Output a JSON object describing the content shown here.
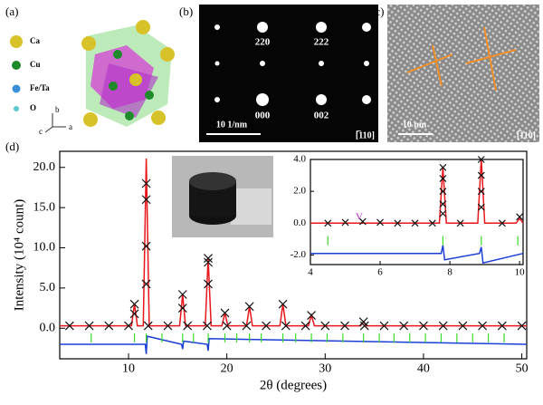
{
  "panel_labels": [
    "(a)",
    "(b)",
    "(c)",
    "(d)"
  ],
  "structure": {
    "legend": [
      "Ca",
      "Cu",
      "Fe/Ta",
      "O"
    ],
    "axes": [
      "b",
      "c",
      "a"
    ]
  },
  "diffraction": {
    "spots": [
      "220",
      "222",
      "000",
      "002"
    ],
    "scale": "10 1/nm",
    "zone": "[̅110]"
  },
  "hrtem": {
    "scale": "10 nm",
    "zone": "[̅110]"
  },
  "chart_data": [
    {
      "type": "line",
      "xlabel": "2θ (degrees)",
      "ylabel": "Intensity (10⁴ count)",
      "xlim": [
        3,
        50.5
      ],
      "ylim": [
        -3.8,
        22
      ],
      "xticks": [
        10,
        20,
        30,
        40,
        50
      ],
      "yticks": [
        {
          "value": 0,
          "label": "0.0"
        },
        {
          "value": 5,
          "label": "5.0"
        },
        {
          "value": 10,
          "label": "10.0"
        },
        {
          "value": 15,
          "label": "15.0"
        },
        {
          "value": 20,
          "label": "20.0"
        }
      ],
      "series": [
        {
          "kind": "line",
          "color": "#e8151b",
          "x": [
            3,
            10.3,
            10.6,
            10.9,
            11.5,
            11.8,
            12.1,
            15.2,
            15.5,
            15.8,
            17.8,
            18.1,
            18.4,
            19.5,
            19.8,
            20.1,
            22,
            22.3,
            22.6,
            25.4,
            25.7,
            26,
            28.3,
            28.6,
            28.9,
            33.6,
            33.9,
            34.2,
            50.5
          ],
          "values": [
            0.3,
            0.3,
            3.0,
            0.3,
            0.3,
            21.1,
            0.3,
            0.3,
            4.2,
            0.3,
            0.3,
            8.7,
            0.3,
            0.3,
            1.9,
            0.3,
            0.3,
            2.7,
            0.3,
            0.3,
            3.0,
            0.3,
            0.3,
            1.6,
            0.3,
            0.3,
            0.8,
            0.3,
            0.3
          ]
        },
        {
          "kind": "points",
          "color": "#111111",
          "x": [
            10.6,
            10.6,
            11.8,
            11.8,
            11.8,
            11.8,
            15.5,
            15.5,
            18.1,
            18.1,
            18.1,
            19.8,
            22.3,
            25.7,
            28.6,
            33.9,
            4,
            6,
            8,
            10,
            12,
            14,
            16,
            18,
            20,
            22,
            24,
            26,
            28,
            30,
            32,
            34,
            36,
            38,
            40,
            42,
            44,
            46,
            48,
            50
          ],
          "values": [
            3.0,
            1.8,
            18,
            16,
            10.2,
            5.5,
            4.2,
            2.5,
            8.7,
            8.2,
            5.5,
            1.9,
            2.7,
            3.0,
            1.6,
            0.8,
            0.3,
            0.3,
            0.3,
            0.3,
            0.3,
            0.3,
            0.3,
            0.3,
            0.3,
            0.3,
            0.3,
            0.3,
            0.3,
            0.3,
            0.3,
            0.3,
            0.3,
            0.3,
            0.3,
            0.3,
            0.3,
            0.3,
            0.3,
            0.3
          ]
        },
        {
          "kind": "line",
          "color": "#1a3fd6",
          "x": [
            3,
            11.7,
            11.8,
            11.9,
            15.4,
            15.5,
            15.6,
            18,
            18.1,
            18.2,
            50.5
          ],
          "values": [
            -2.0,
            -2.0,
            -3.2,
            -1.0,
            -2.0,
            -2.6,
            -1.6,
            -2.0,
            -2.8,
            -1.3,
            -2.0
          ]
        },
        {
          "kind": "ticks",
          "color": "#3adb2a",
          "x": [
            6.2,
            10.6,
            11.8,
            13.4,
            15.5,
            16.6,
            18.1,
            19.8,
            21.0,
            22.3,
            23.5,
            25.7,
            27.0,
            28.6,
            30.2,
            31.8,
            33.9,
            35.5,
            37.0,
            38.6,
            40.2,
            41.8,
            43.4,
            45.0,
            46.6,
            48.2
          ],
          "values": [
            -1.2,
            -1.2,
            -1.2,
            -1.2,
            -1.2,
            -1.2,
            -1.2,
            -1.2,
            -1.2,
            -1.2,
            -1.2,
            -1.2,
            -1.2,
            -1.2,
            -1.2,
            -1.2,
            -1.2,
            -1.2,
            -1.2,
            -1.2,
            -1.2,
            -1.2,
            -1.2,
            -1.2,
            -1.2,
            -1.2
          ]
        }
      ]
    },
    {
      "type": "line",
      "xlim": [
        4,
        10.1
      ],
      "ylim": [
        -2.6,
        4
      ],
      "xticks": [
        4,
        6,
        8,
        10
      ],
      "yticks": [
        {
          "value": -2,
          "label": "-2.0"
        },
        {
          "value": 0,
          "label": "0.0"
        },
        {
          "value": 2,
          "label": "2.0"
        },
        {
          "value": 4,
          "label": "4.0"
        }
      ],
      "annotations": [
        {
          "text": "V",
          "x": 5.4,
          "y": 0.35,
          "color": "#c02ad0"
        }
      ],
      "series": [
        {
          "kind": "line",
          "color": "#e8151b",
          "x": [
            4,
            7.7,
            7.8,
            7.9,
            8.8,
            8.9,
            9.0,
            9.9,
            10.0,
            10.1
          ],
          "values": [
            0,
            0,
            3.5,
            0,
            0,
            4.0,
            0,
            0,
            0.3,
            0
          ]
        },
        {
          "kind": "points",
          "color": "#111111",
          "x": [
            7.8,
            7.8,
            7.8,
            7.8,
            7.8,
            8.9,
            8.9,
            8.9,
            8.9,
            10.0,
            4.5,
            5,
            5.5,
            6,
            6.5,
            7,
            7.5,
            8.3,
            9.5
          ],
          "values": [
            3.5,
            2.8,
            2.0,
            1.2,
            0.6,
            4.0,
            3.0,
            2.0,
            1.0,
            0.4,
            0,
            0.05,
            0.1,
            0.05,
            0,
            0,
            0,
            0,
            0
          ]
        },
        {
          "kind": "line",
          "color": "#1a3fd6",
          "x": [
            4,
            7.75,
            7.8,
            7.85,
            8.85,
            8.9,
            8.95,
            10.1
          ],
          "values": [
            -1.9,
            -1.9,
            -1.4,
            -2.3,
            -1.9,
            -1.5,
            -2.5,
            -1.9
          ]
        },
        {
          "kind": "ticks",
          "color": "#3adb2a",
          "x": [
            4.5,
            7.8,
            8.9,
            9.95
          ],
          "values": [
            -1.1,
            -1.1,
            -1.1,
            -1.1
          ]
        }
      ]
    }
  ]
}
